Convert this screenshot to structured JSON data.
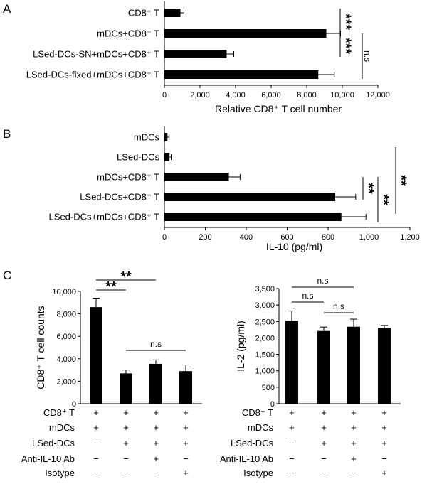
{
  "chart_data": [
    {
      "panel": "A",
      "type": "bar",
      "orientation": "horizontal",
      "categories": [
        "CD8⁺ T",
        "mDCs+CD8⁺ T",
        "LSed-DCs-SN+mDCs+CD8⁺ T",
        "LSed-DCs-fixed+mDCs+CD8⁺ T"
      ],
      "values": [
        900,
        9100,
        3500,
        8650
      ],
      "errors": [
        200,
        800,
        400,
        900
      ],
      "xlabel": "Relative CD8⁺ T cell number",
      "xlim": [
        0,
        12000
      ],
      "ticks": [
        "0",
        "2,000",
        "4,000",
        "6,000",
        "8,000",
        "10,000",
        "12,000"
      ],
      "significance": [
        {
          "between": [
            0,
            1
          ],
          "label": "***"
        },
        {
          "between": [
            1,
            2
          ],
          "label": "***"
        },
        {
          "between": [
            1,
            3
          ],
          "label": "n.s"
        }
      ]
    },
    {
      "panel": "B",
      "type": "bar",
      "orientation": "horizontal",
      "categories": [
        "mDCs",
        "LSed-DCs",
        "mDCs+CD8⁺ T",
        "LSed-DCs+CD8⁺ T",
        "LSed-DCs+mDCs+CD8⁺ T"
      ],
      "values": [
        15,
        25,
        315,
        835,
        865
      ],
      "errors": [
        8,
        8,
        55,
        100,
        120
      ],
      "xlabel": "IL-10 (pg/ml)",
      "xlim": [
        0,
        1200
      ],
      "ticks": [
        "0",
        "200",
        "400",
        "600",
        "800",
        "1,000",
        "1,200"
      ],
      "significance": [
        {
          "between": [
            2,
            3
          ],
          "label": "**"
        },
        {
          "between": [
            2,
            4
          ],
          "label": "**"
        },
        {
          "between": [
            1,
            4
          ],
          "label": "**"
        }
      ]
    },
    {
      "panel": "C",
      "type": "bar",
      "values": [
        8600,
        2700,
        3550,
        2900
      ],
      "errors": [
        800,
        300,
        350,
        550
      ],
      "ylabel": "CD8⁺ T cell counts",
      "ylim": [
        0,
        10000
      ],
      "ticks": [
        "0",
        "2,000",
        "4,000",
        "6,000",
        "8,000",
        "10,000"
      ],
      "significance": [
        {
          "between": [
            0,
            1
          ],
          "label": "**"
        },
        {
          "between": [
            0,
            2
          ],
          "label": "**"
        },
        {
          "between": [
            1,
            3
          ],
          "label": "n.s"
        }
      ]
    },
    {
      "type": "bar",
      "values": [
        2520,
        2210,
        2340,
        2300
      ],
      "errors": [
        300,
        120,
        230,
        80
      ],
      "ylabel": "IL-2 (pg/ml)",
      "ylim": [
        0,
        3500
      ],
      "ticks": [
        "0",
        "500",
        "1,000",
        "1,500",
        "2,000",
        "2,500",
        "3,000",
        "3,500"
      ],
      "significance": [
        {
          "between": [
            0,
            1
          ],
          "label": "n.s"
        },
        {
          "between": [
            0,
            2
          ],
          "label": "n.s"
        },
        {
          "between": [
            1,
            2
          ],
          "label": "n.s"
        }
      ]
    }
  ],
  "condition_table": {
    "rows": [
      {
        "label": "CD8⁺ T",
        "signs": [
          "+",
          "+",
          "+",
          "+"
        ]
      },
      {
        "label": "mDCs",
        "signs": [
          "+",
          "+",
          "+",
          "+"
        ]
      },
      {
        "label": "LSed-DCs",
        "signs": [
          "−",
          "+",
          "+",
          "+"
        ]
      },
      {
        "label": "Anti-IL-10 Ab",
        "signs": [
          "−",
          "−",
          "+",
          "−"
        ]
      },
      {
        "label": "Isotype",
        "signs": [
          "−",
          "−",
          "−",
          "+"
        ]
      }
    ]
  }
}
